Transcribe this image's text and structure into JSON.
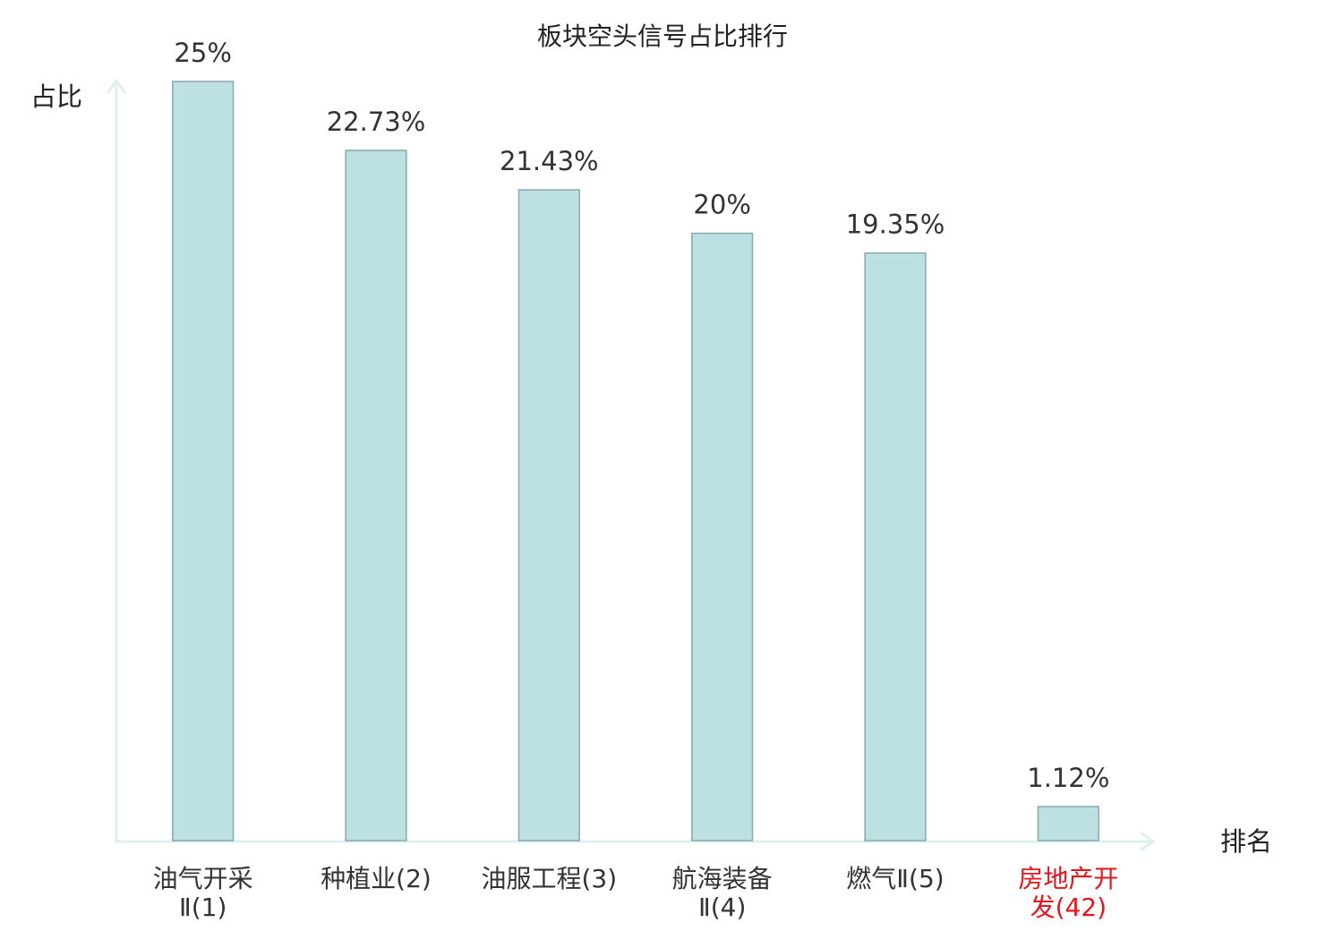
{
  "chart_data": {
    "type": "bar",
    "title": "板块空头信号占比排行",
    "categories": [
      "油气开采\nⅡ(1)",
      "种植业(2)",
      "油服工程(3)",
      "航海装备\nⅡ(4)",
      "燃气Ⅱ(5)",
      "房地产开\n发(42)"
    ],
    "category_colors": [
      "#333333",
      "#333333",
      "#333333",
      "#333333",
      "#333333",
      "#e8141b"
    ],
    "values": [
      25,
      22.73,
      21.43,
      20,
      19.35,
      1.12
    ],
    "value_labels": [
      "25%",
      "22.73%",
      "21.43%",
      "20%",
      "19.35%",
      "1.12%"
    ],
    "color": "#bde0e3",
    "y_label": "占比",
    "x_label": "排名",
    "ylim": [
      0,
      25
    ]
  }
}
